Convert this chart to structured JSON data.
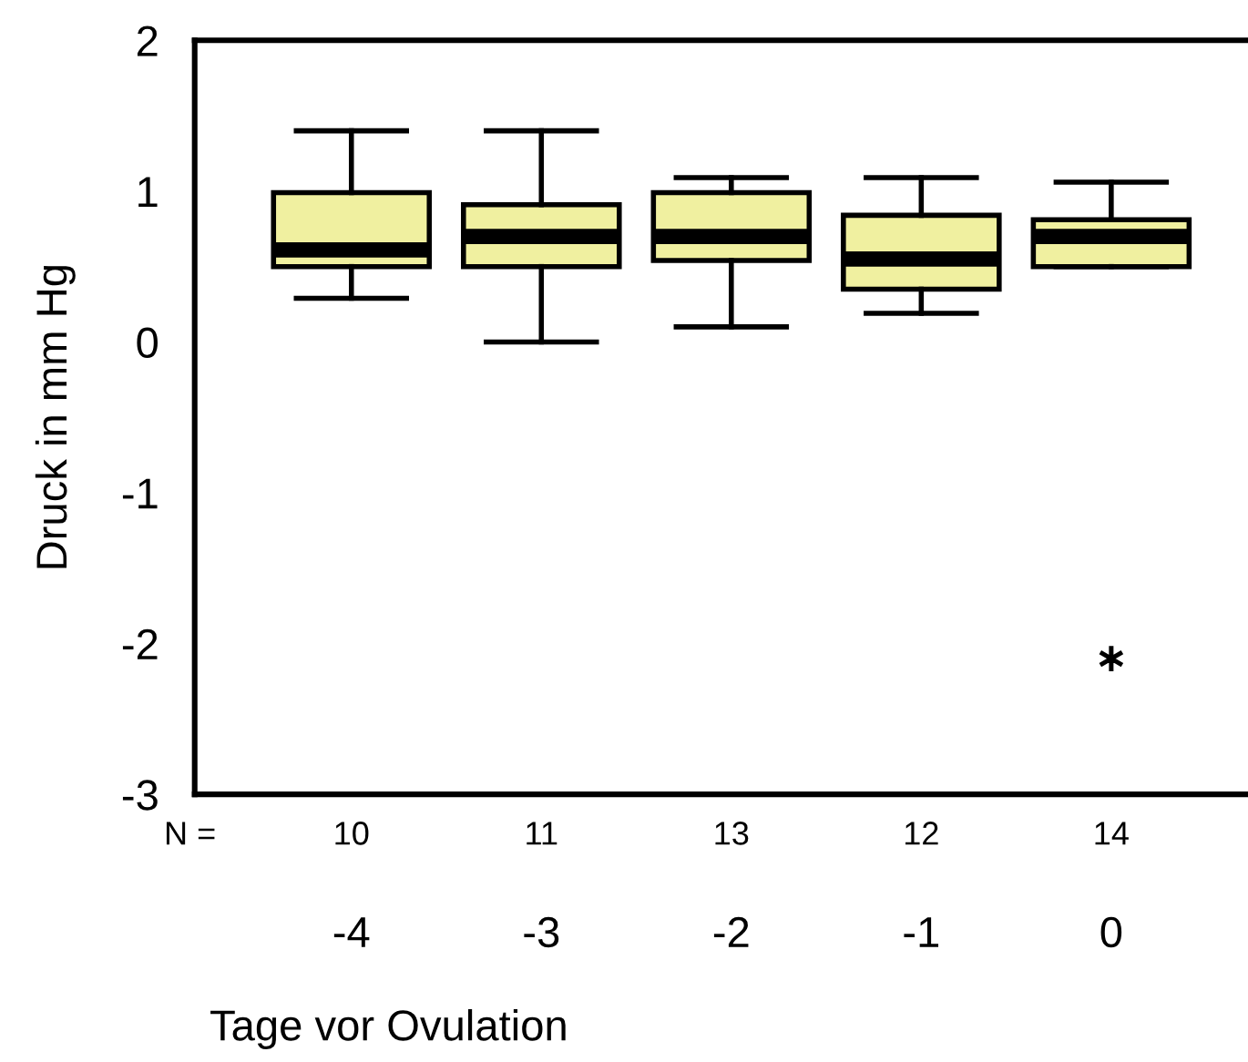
{
  "chart_data": {
    "type": "box",
    "xlabel": "Tage vor Ovulation",
    "ylabel": "Druck in mm Hg",
    "categories": [
      "-4",
      "-3",
      "-2",
      "-1",
      "0"
    ],
    "color": "#f0f0a0",
    "boxes": [
      {
        "low": 0.29,
        "q1": 0.5,
        "median": 0.61,
        "q3": 0.99,
        "high": 1.4
      },
      {
        "low": 0.0,
        "q1": 0.5,
        "median": 0.7,
        "q3": 0.91,
        "high": 1.4
      },
      {
        "low": 0.1,
        "q1": 0.54,
        "median": 0.7,
        "q3": 0.99,
        "high": 1.09
      },
      {
        "low": 0.19,
        "q1": 0.35,
        "median": 0.55,
        "q3": 0.84,
        "high": 1.09
      },
      {
        "low": 0.5,
        "q1": 0.5,
        "median": 0.7,
        "q3": 0.81,
        "high": 1.06,
        "outliers": [
          -2.1
        ]
      }
    ],
    "ylim": [
      -3,
      2
    ],
    "yticks": [
      -3,
      -2,
      -1,
      0,
      1,
      2
    ],
    "grid": false,
    "legend": false,
    "annotations": [
      "N =",
      "10",
      "11",
      "13",
      "12",
      "14"
    ]
  }
}
